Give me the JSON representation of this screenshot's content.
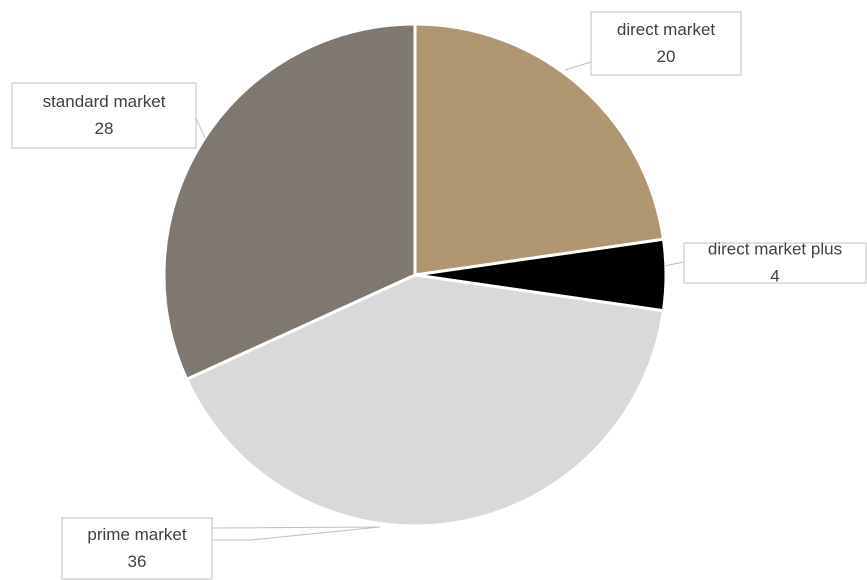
{
  "chart_data": {
    "type": "pie",
    "categories": [
      "direct market",
      "direct market plus",
      "prime market",
      "standard market"
    ],
    "values": [
      20,
      4,
      36,
      28
    ],
    "colors": [
      "#b09670",
      "#000000",
      "#d9d9d9",
      "#7f7870"
    ]
  }
}
